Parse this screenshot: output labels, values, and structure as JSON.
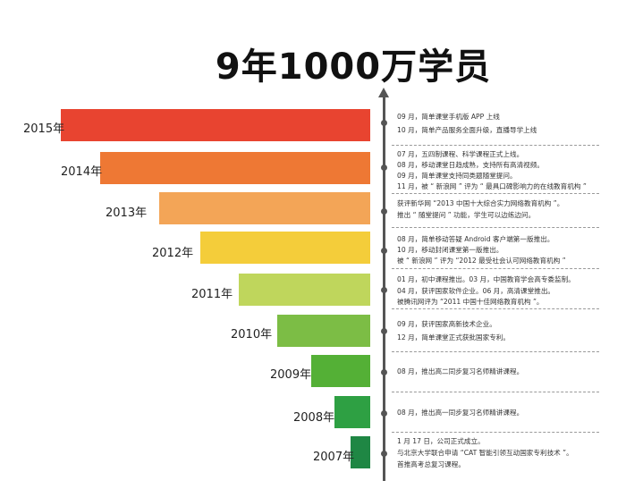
{
  "title": "9年1000万学员",
  "colors": {
    "2015": "#e84430",
    "2014": "#ee7834",
    "2013": "#f3a557",
    "2012": "#f4cd3a",
    "2011": "#bfd65c",
    "2010": "#7cbd45",
    "2009": "#54b036",
    "2008": "#2ea043",
    "2007": "#1f8744"
  },
  "years": [
    {
      "year": "2015年",
      "events": [
        "09 月，简单课堂手机版 APP 上线",
        "10 月，简单产品服务全面升级，直播导学上线"
      ]
    },
    {
      "year": "2014年",
      "events": [
        "07 月，五四制课程、科学课程正式上线。",
        "08 月，移动课堂日趋成熟，支持所有高清视频。",
        "09 月，简单课堂支持同类题随堂提问。",
        "11 月，被 “ 新浪网 ” 评为 “ 最具口碑影响力的在线教育机构 ”"
      ]
    },
    {
      "year": "2013年",
      "events": [
        "获评新华网 “2013 中国十大综合实力网络教育机构 ”。",
        "推出 “ 随堂提问 ” 功能，学生可以边练边问。"
      ]
    },
    {
      "year": "2012年",
      "events": [
        "08 月，简单移动答疑 Android 客户端第一版推出。",
        "10 月，移动封闭课堂第一版推出。",
        "被 “ 新浪网 ” 评为 “2012 最受社会认可网络教育机构 ”"
      ]
    },
    {
      "year": "2011年",
      "events": [
        "01 月，初中课程推出。03 月，中国教育学会高专委监制。",
        "04 月，获评国家软件企业。06 月，高清课堂推出。",
        "被腾讯网评为 “2011 中国十佳网络教育机构 ”。"
      ]
    },
    {
      "year": "2010年",
      "events": [
        "09 月，获评国家高新技术企业。",
        "12 月，简单课堂正式获批国家专利。"
      ]
    },
    {
      "year": "2009年",
      "events": [
        "08 月，推出高二同步复习名师精讲课程。"
      ]
    },
    {
      "year": "2008年",
      "events": [
        "08 月，推出高一同步复习名师精讲课程。"
      ]
    },
    {
      "year": "2007年",
      "events": [
        "1 月 17 日，公司正式成立。",
        "与北京大学联合申请 “CAT 智能引领互动国家专利技术 ”。",
        "首推高考总复习课程。"
      ]
    }
  ]
}
